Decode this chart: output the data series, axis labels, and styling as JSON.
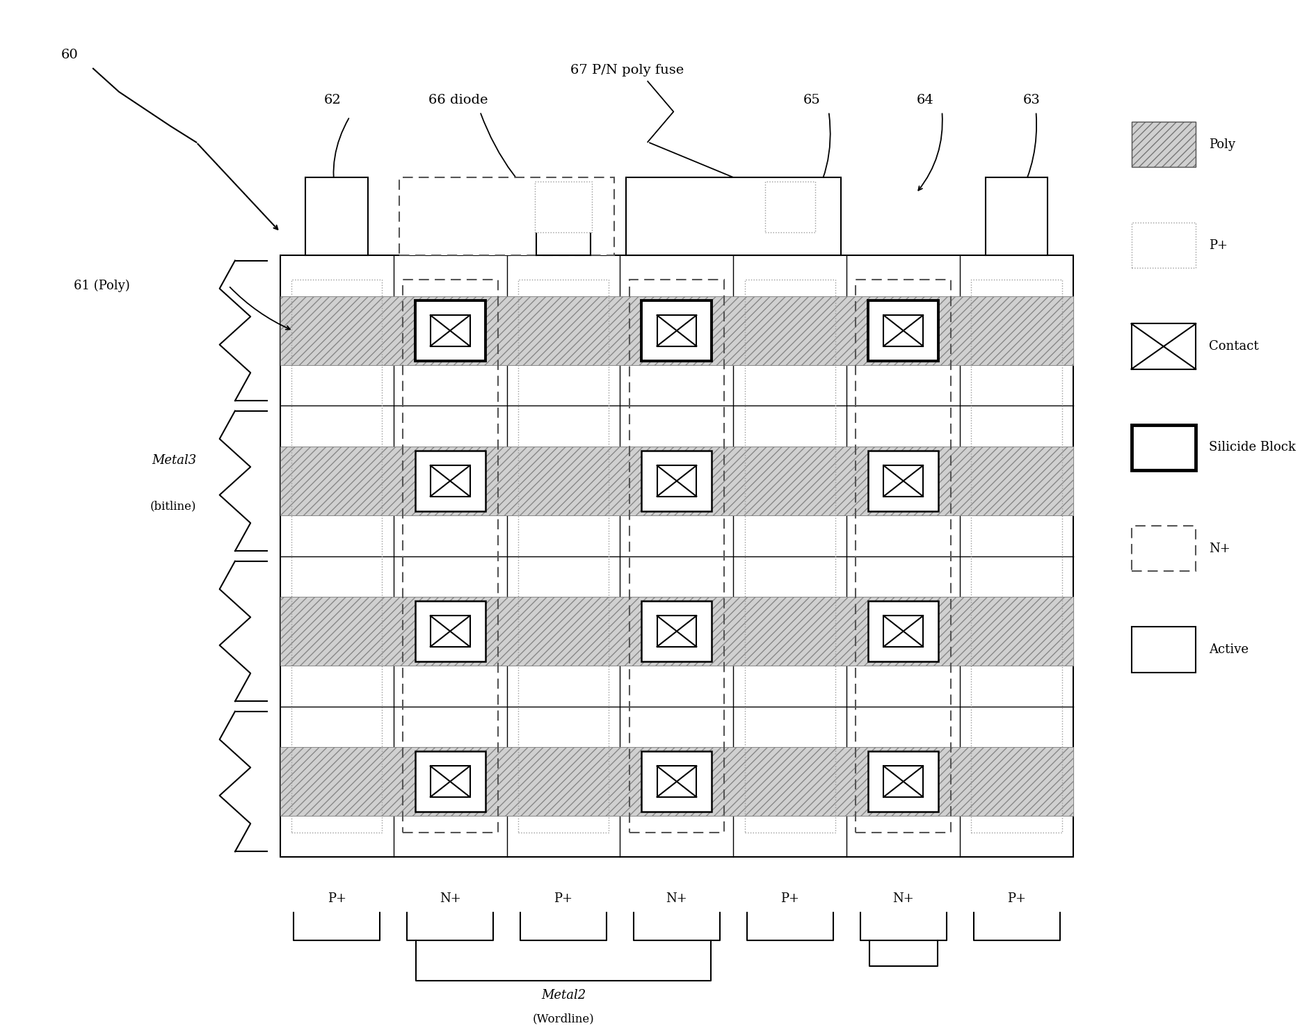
{
  "fig_width": 18.92,
  "fig_height": 14.78,
  "bg_color": "#ffffff",
  "label_60": "60",
  "label_61": "61 (Poly)",
  "label_62": "62",
  "label_63": "63",
  "label_64": "64",
  "label_65": "65",
  "label_66": "66 diode",
  "label_67": "67 P/N poly fuse",
  "label_metal3": "Metal3",
  "label_bitline": "(bitline)",
  "label_metal2": "Metal2",
  "label_wordline": "(Wordline)",
  "col_labels": [
    "P+",
    "N+",
    "P+",
    "N+",
    "P+",
    "N+",
    "P+"
  ],
  "legend_items": [
    "Poly",
    "P+",
    "Contact",
    "Silicide Block",
    "N+",
    "Active"
  ]
}
